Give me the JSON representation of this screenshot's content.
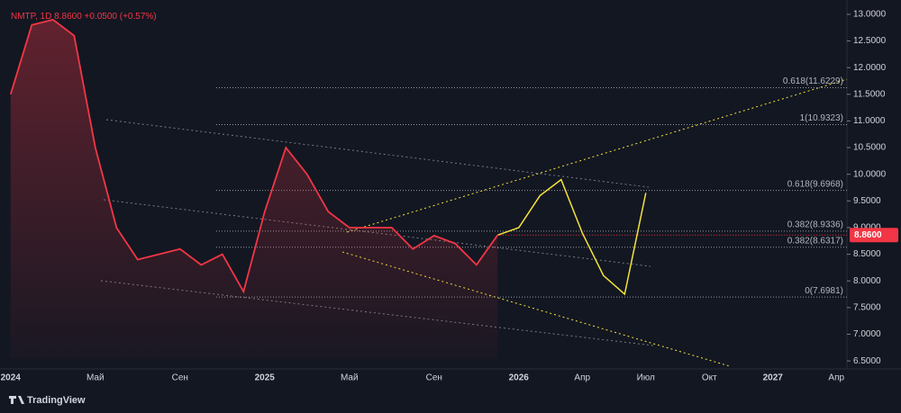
{
  "chart_data": {
    "type": "line",
    "header": {
      "symbol": "NMTP, 1D",
      "last": "8.8600",
      "change": "+0.0500 (+0.57%)"
    },
    "price_tag": "8.8600",
    "footer": "TradingView",
    "categories": [
      "2024",
      null,
      null,
      null,
      "Май",
      null,
      null,
      null,
      "Сен",
      null,
      null,
      null,
      "2025",
      null,
      null,
      null,
      "Май",
      null,
      null,
      null,
      "Сен",
      null,
      null,
      null,
      "2026",
      null,
      null,
      "Апр",
      null,
      null,
      "Июл",
      null,
      null,
      "Окт",
      null,
      null,
      "2027",
      null,
      null,
      "Апр"
    ],
    "series": [
      {
        "color": "#f23645",
        "values": [
          11.5,
          12.8,
          12.9,
          12.6,
          10.5,
          9.0,
          8.4,
          8.5,
          8.6,
          8.3,
          8.5,
          7.8,
          9.3,
          10.5,
          10.0,
          9.3,
          9.0,
          9.0,
          9.0,
          8.6,
          8.85,
          8.7,
          8.3,
          8.86,
          null,
          null,
          null,
          null,
          null,
          null,
          null,
          null,
          null,
          null,
          null,
          null,
          null,
          null,
          null,
          null
        ]
      },
      {
        "color": "#f5e33b",
        "values": [
          null,
          null,
          null,
          null,
          null,
          null,
          null,
          null,
          null,
          null,
          null,
          null,
          null,
          null,
          null,
          null,
          null,
          null,
          null,
          null,
          null,
          null,
          null,
          8.86,
          9.0,
          9.6,
          9.9,
          8.9,
          8.1,
          7.75,
          9.65,
          null,
          null,
          null,
          null,
          null,
          null,
          null,
          null,
          null
        ]
      }
    ],
    "levels": [
      {
        "value": 11.6229,
        "label": "0.618(11.6229)"
      },
      {
        "value": 10.9323,
        "label": "1(10.9323)"
      },
      {
        "value": 9.6968,
        "label": "0.618(9.6968)"
      },
      {
        "value": 8.9336,
        "label": "0.382(8.9336)"
      },
      {
        "value": 8.6317,
        "label": "0.382(8.6317)"
      },
      {
        "value": 7.6981,
        "label": "0(7.6981)"
      }
    ],
    "ylim": [
      6.35,
      13.1
    ],
    "yticks": [
      {
        "value": 6.5,
        "label": "6.5000"
      },
      {
        "value": 7.0,
        "label": "7.0000"
      },
      {
        "value": 7.5,
        "label": "7.5000"
      },
      {
        "value": 8.0,
        "label": "8.0000"
      },
      {
        "value": 8.5,
        "label": "8.5000"
      },
      {
        "value": 9.0,
        "label": "9.0000"
      },
      {
        "value": 9.5,
        "label": "9.5000"
      },
      {
        "value": 10.0,
        "label": "10.0000"
      },
      {
        "value": 10.5,
        "label": "10.5000"
      },
      {
        "value": 11.0,
        "label": "11.0000"
      },
      {
        "value": 11.5,
        "label": "11.5000"
      },
      {
        "value": 12.0,
        "label": "12.0000"
      },
      {
        "value": 12.5,
        "label": "12.5000"
      },
      {
        "value": 13.0,
        "label": "13.0000"
      }
    ]
  }
}
